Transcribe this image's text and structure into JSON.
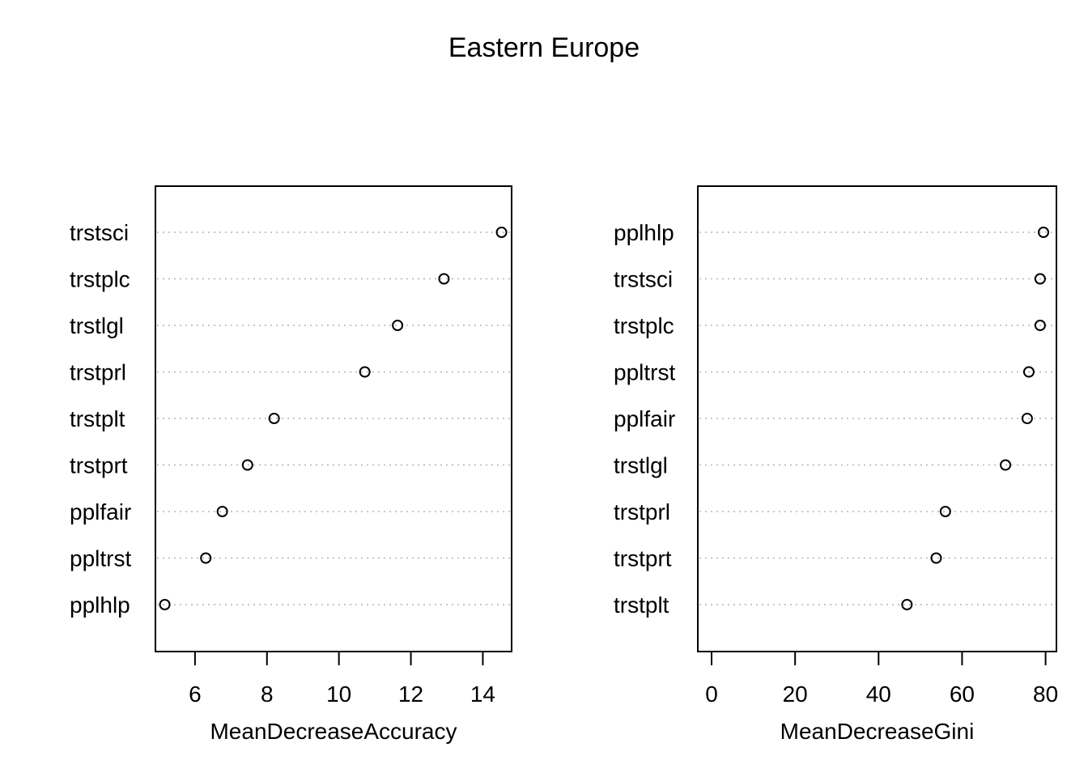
{
  "figure": {
    "title": "Eastern Europe"
  },
  "chart_data": [
    {
      "type": "scatter",
      "subtype": "dotchart",
      "xlabel": "MeanDecreaseAccuracy",
      "ylabel": "",
      "xlim": [
        4.9,
        14.8
      ],
      "xticks": [
        "6",
        "8",
        "10",
        "12",
        "14"
      ],
      "grid": "dotted horizontal guide per category",
      "categories": [
        "trstsci",
        "trstplc",
        "trstlgl",
        "trstprl",
        "trstplt",
        "trstprt",
        "pplfair",
        "ppltrst",
        "pplhlp"
      ],
      "values": [
        14.52,
        12.92,
        11.63,
        10.72,
        8.2,
        7.46,
        6.76,
        6.3,
        5.16
      ]
    },
    {
      "type": "scatter",
      "subtype": "dotchart",
      "xlabel": "MeanDecreaseGini",
      "ylabel": "",
      "xlim": [
        -3.3,
        82.6
      ],
      "xticks": [
        "0",
        "20",
        "40",
        "60",
        "80"
      ],
      "grid": "dotted horizontal guide per category",
      "categories": [
        "pplhlp",
        "trstsci",
        "trstplc",
        "ppltrst",
        "pplfair",
        "trstlgl",
        "trstprl",
        "trstprt",
        "trstplt"
      ],
      "values": [
        79.5,
        78.7,
        78.7,
        76.0,
        75.6,
        70.4,
        56.0,
        53.8,
        46.8
      ]
    }
  ]
}
